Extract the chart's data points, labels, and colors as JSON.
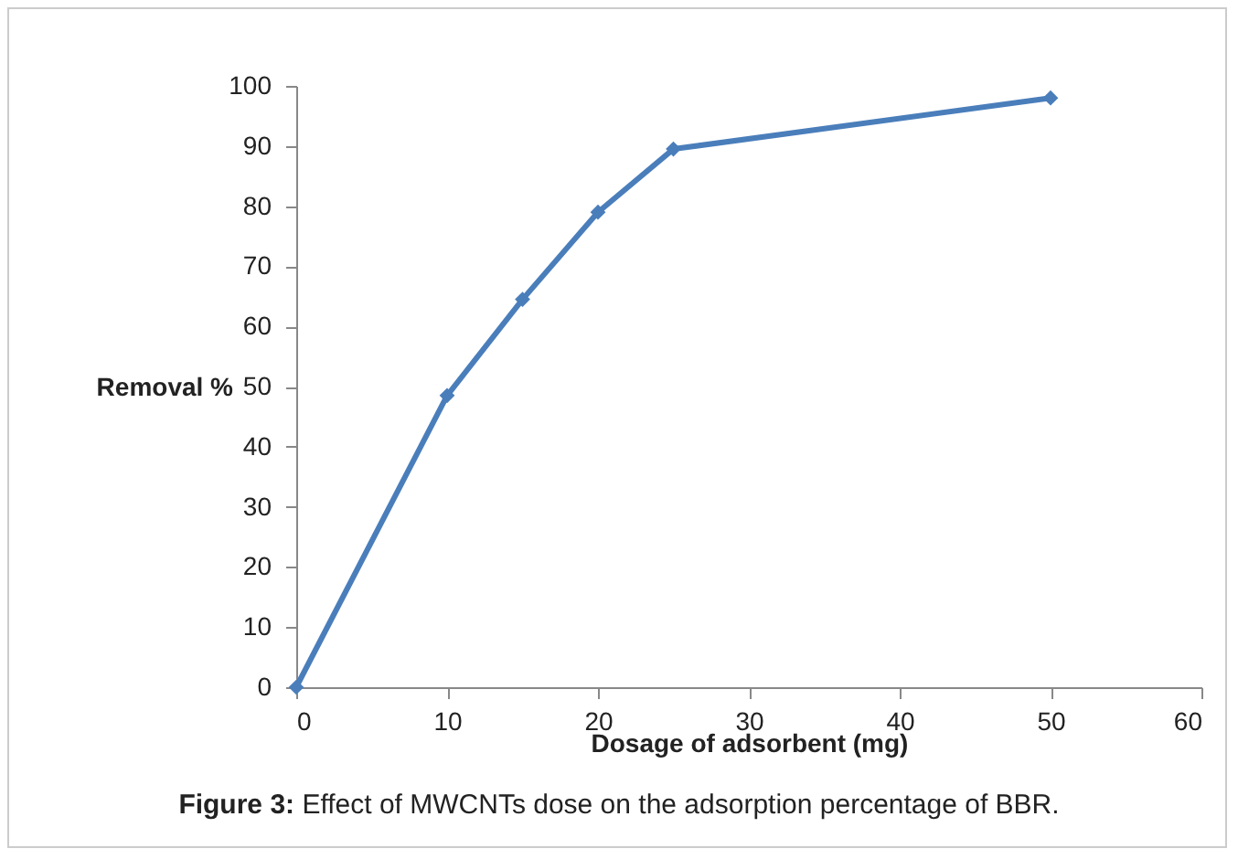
{
  "chart_data": {
    "type": "line",
    "xlabel": "Dosage of adsorbent (mg)",
    "ylabel": "Removal %",
    "x": [
      0,
      10,
      15,
      20,
      25,
      50
    ],
    "series": [
      {
        "color": "#4a7ebb",
        "values": [
          0,
          48.5,
          64.5,
          79,
          89.5,
          98
        ]
      }
    ],
    "xlim": [
      0,
      60
    ],
    "xticks": [
      0,
      10,
      20,
      30,
      40,
      50,
      60
    ],
    "ylim": [
      0,
      100
    ],
    "yticks": [
      0,
      10,
      20,
      30,
      40,
      50,
      60,
      70,
      80,
      90,
      100
    ],
    "grid": false,
    "legend": false,
    "marker": "diamond",
    "line_style": "solid",
    "annotations": [
      "Figure 3: Effect of MWCNTs dose on the adsorption percentage of BBR."
    ]
  }
}
